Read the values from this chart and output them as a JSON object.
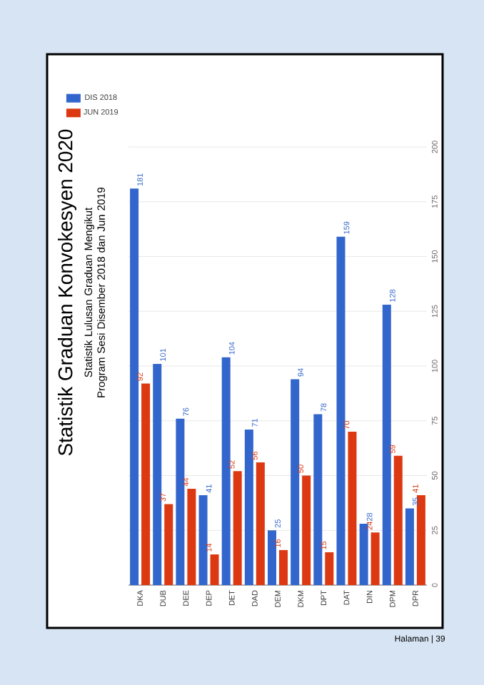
{
  "chart_data": {
    "type": "bar",
    "title": "Statistik Graduan Konvokesyen 2020",
    "subtitle": "Statistik Lulusan Graduan Mengikut Program Sesi Disember 2018 dan Jun 2019",
    "categories": [
      "DKA",
      "DUB",
      "DEE",
      "DEP",
      "DET",
      "DAD",
      "DEM",
      "DKM",
      "DPT",
      "DAT",
      "DIN",
      "DPM",
      "DPR"
    ],
    "series": [
      {
        "name": "DIS 2018",
        "color": "#3366cc",
        "values": [
          181,
          101,
          76,
          41,
          104,
          71,
          25,
          94,
          78,
          159,
          28,
          128,
          35
        ]
      },
      {
        "name": "JUN 2019",
        "color": "#dc3912",
        "values": [
          92,
          37,
          44,
          14,
          52,
          56,
          16,
          50,
          15,
          70,
          24,
          59,
          41
        ]
      }
    ],
    "ylim": [
      0,
      200
    ],
    "yticks": [
      0,
      25,
      50,
      75,
      100,
      125,
      150,
      175,
      200
    ],
    "grid": "y",
    "legend": "top",
    "data_labels": true,
    "annotations": [
      "Halaman | 39"
    ]
  }
}
